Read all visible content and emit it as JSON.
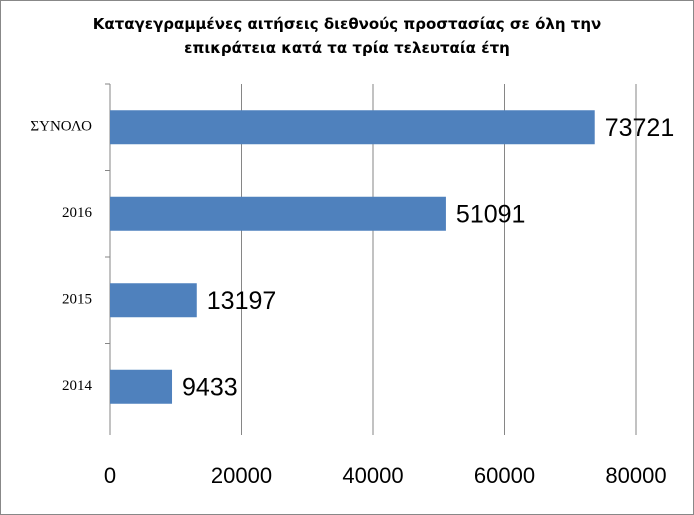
{
  "chart_data": {
    "type": "bar",
    "orientation": "horizontal",
    "title": "Καταγεγραμμένες αιτήσεις διεθνούς προστασίας σε όλη την επικράτεια κατά τα τρία τελευταία έτη",
    "categories": [
      "ΣΥΝΟΛΟ",
      "2016",
      "2015",
      "2014"
    ],
    "values": [
      73721,
      51091,
      13197,
      9433
    ],
    "color": "#4f81bd",
    "xlim": [
      0,
      80000
    ],
    "xticks": [
      0,
      20000,
      40000,
      60000,
      80000
    ],
    "grid": true
  }
}
